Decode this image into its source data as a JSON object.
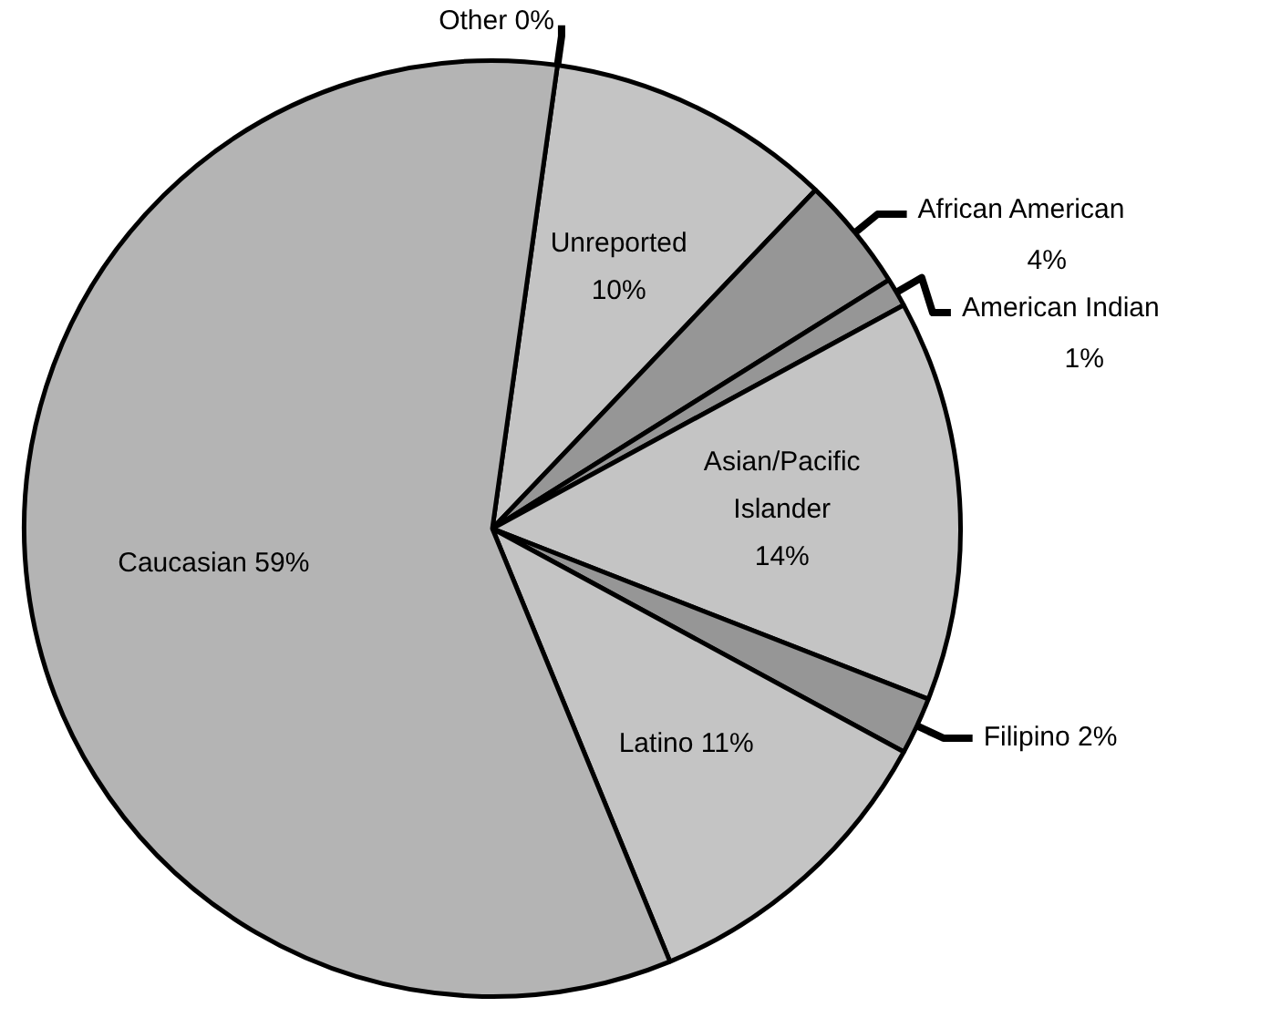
{
  "chart_data": {
    "type": "pie",
    "categories": [
      "Other",
      "Unreported",
      "African American",
      "American Indian",
      "Asian/Pacific Islander",
      "Filipino",
      "Latino",
      "Caucasian"
    ],
    "values": [
      0,
      10,
      4,
      1,
      14,
      2,
      11,
      59
    ],
    "value_labels": [
      "0%",
      "10%",
      "4%",
      "1%",
      "14%",
      "2%",
      "11%",
      "59%"
    ],
    "colors": [
      "#b4b4b4",
      "#c4c4c4",
      "#969696",
      "#969696",
      "#c4c4c4",
      "#969696",
      "#c4c4c4",
      "#b4b4b4"
    ],
    "legend": false
  }
}
